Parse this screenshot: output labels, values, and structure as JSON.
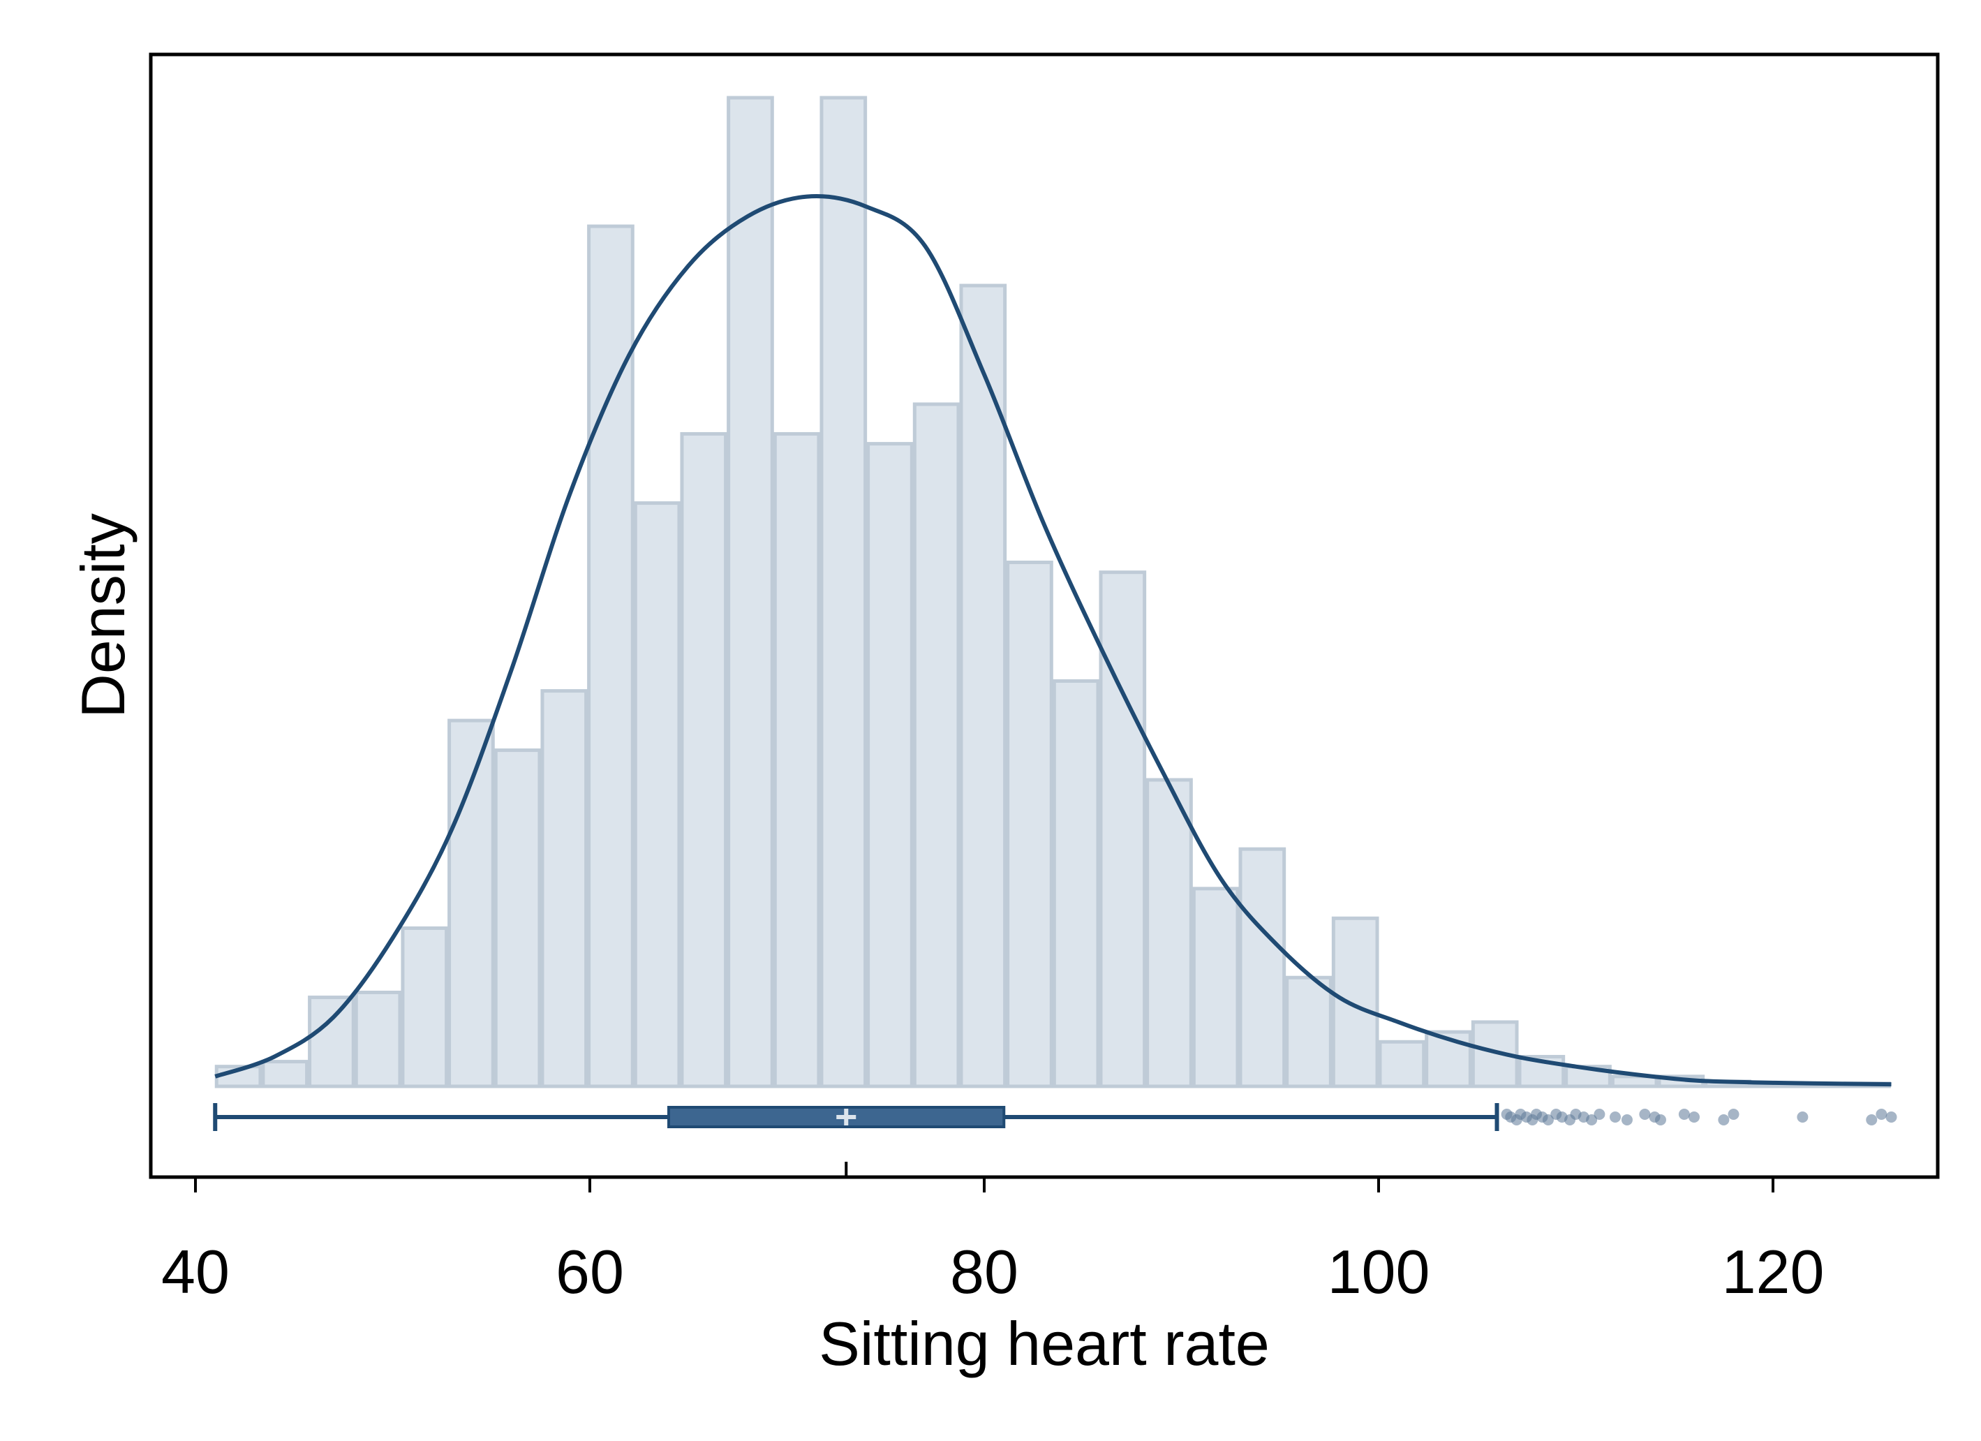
{
  "chart_data": {
    "type": "bar",
    "subtype": "histogram-with-density-and-boxplot",
    "xlabel": "Sitting heart rate",
    "ylabel": "Density",
    "xlim": [
      38,
      128
    ],
    "xticks": [
      40,
      60,
      80,
      100,
      120
    ],
    "y_tick_labels_shown": false,
    "grid": false,
    "legend": "none",
    "histogram": {
      "bin_width": 2.36,
      "bin_start": 41,
      "relative_heights": [
        0.02,
        0.025,
        0.09,
        0.095,
        0.16,
        0.37,
        0.34,
        0.4,
        0.87,
        0.59,
        0.66,
        1.0,
        0.66,
        1.0,
        0.65,
        0.69,
        0.81,
        0.53,
        0.41,
        0.52,
        0.31,
        0.2,
        0.24,
        0.11,
        0.17,
        0.045,
        0.055,
        0.065,
        0.03,
        0.02,
        0.01,
        0.01,
        0.005,
        0.003,
        0.002,
        0.003
      ]
    },
    "density_curve": {
      "x": [
        41,
        44,
        47,
        50,
        53,
        56,
        59,
        62,
        65,
        68,
        71,
        74,
        77,
        80,
        83,
        86,
        89,
        92,
        95,
        98,
        101,
        104,
        107,
        110,
        113,
        116,
        119,
        122,
        126
      ],
      "relative_y": [
        0.01,
        0.03,
        0.07,
        0.15,
        0.26,
        0.42,
        0.6,
        0.74,
        0.83,
        0.88,
        0.9,
        0.89,
        0.85,
        0.72,
        0.57,
        0.44,
        0.32,
        0.21,
        0.14,
        0.09,
        0.065,
        0.045,
        0.03,
        0.02,
        0.012,
        0.006,
        0.004,
        0.003,
        0.002
      ]
    },
    "boxplot": {
      "whisker_low": 41,
      "q1": 64,
      "median": 73,
      "q3": 81,
      "whisker_high": 106,
      "outliers": [
        106.5,
        106.7,
        107,
        107.2,
        107.5,
        107.8,
        108,
        108.3,
        108.6,
        109,
        109.3,
        109.7,
        110,
        110.4,
        110.8,
        111.2,
        112,
        112.6,
        113.5,
        114,
        114.3,
        115.5,
        116,
        117.5,
        118,
        121.5,
        125,
        125.5,
        126
      ]
    },
    "colors": {
      "bar_fill": "#dce4ec",
      "bar_edge": "#bfcbd7",
      "line": "#1f4a73",
      "box_fill": "#3d6690",
      "median": "#dce4ec",
      "outlier": "#5c7898"
    }
  }
}
